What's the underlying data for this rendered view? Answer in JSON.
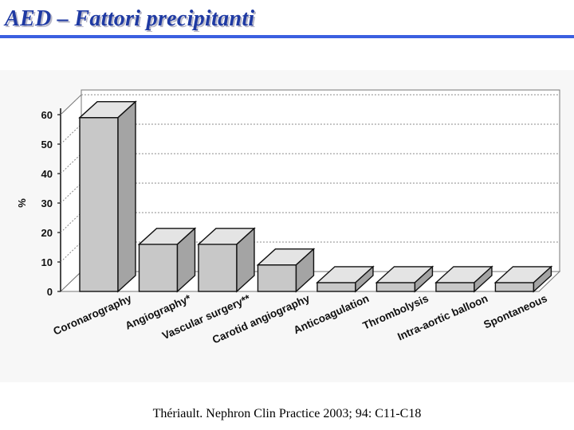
{
  "slide": {
    "title": "AED – Fattori precipitanti",
    "citation": "Thériault. Nephron Clin Practice 2003; 94: C11-C18"
  },
  "colors": {
    "title": "#1f3aa3",
    "rule": "#3b5fe0",
    "bar_front": "#c8c8c8",
    "bar_top": "#e4e4e4",
    "bar_side": "#a4a4a4",
    "axis": "#111111"
  },
  "chart_data": {
    "type": "bar",
    "title": "",
    "xlabel": "",
    "ylabel": "%",
    "ylim": [
      0,
      60
    ],
    "yticks": [
      "0",
      "10",
      "20",
      "30",
      "40",
      "50",
      "60"
    ],
    "grid": true,
    "categories": [
      "Coronarography",
      "Angiography*",
      "Vascular surgery**",
      "Carotid angiography",
      "Anticoagulation",
      "Thrombolysis",
      "Intra-aortic balloon",
      "Spontaneous"
    ],
    "values": [
      59,
      16,
      16,
      9,
      3,
      3,
      3,
      3
    ]
  }
}
